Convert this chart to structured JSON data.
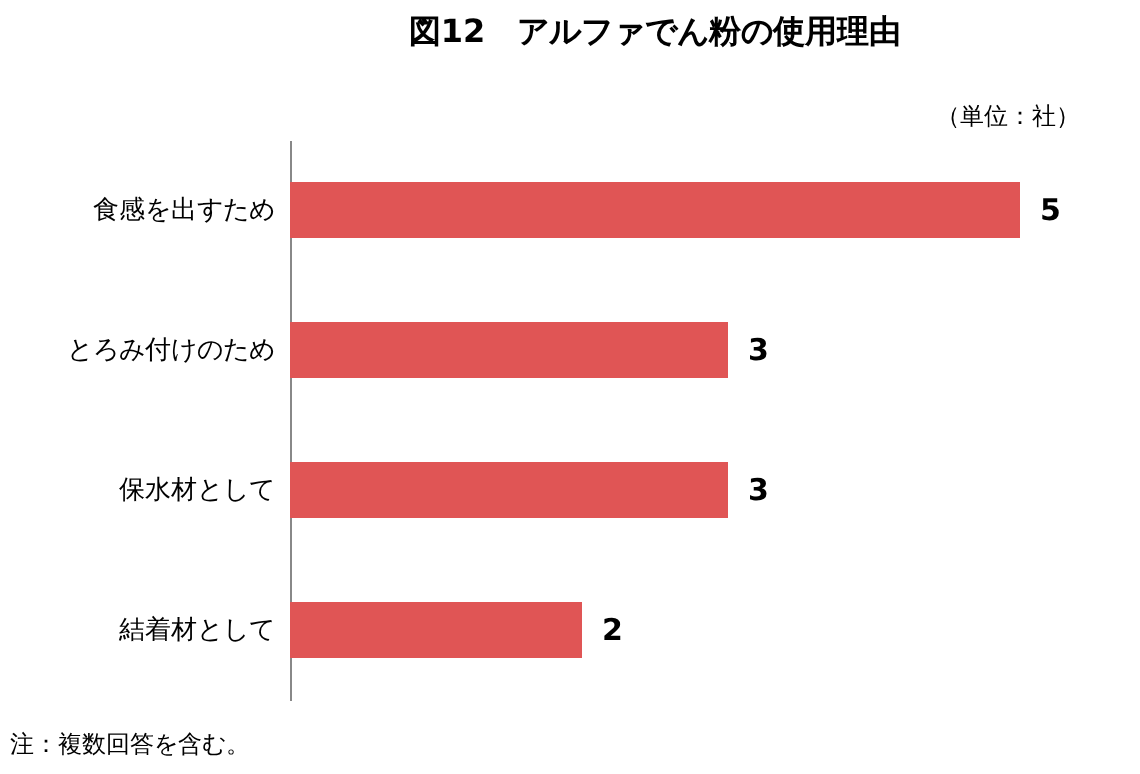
{
  "chart_data": {
    "type": "bar",
    "orientation": "horizontal",
    "title": "図12　アルファでん粉の使用理由",
    "categories": [
      "食感を出すため",
      "とろみ付けのため",
      "保水材として",
      "結着材として"
    ],
    "values": [
      5,
      3,
      3,
      2
    ],
    "color": "#e05555",
    "data_labels": true,
    "grid": false,
    "annotations": [
      "（単位：社）",
      "注：複数回答を含む。"
    ]
  }
}
